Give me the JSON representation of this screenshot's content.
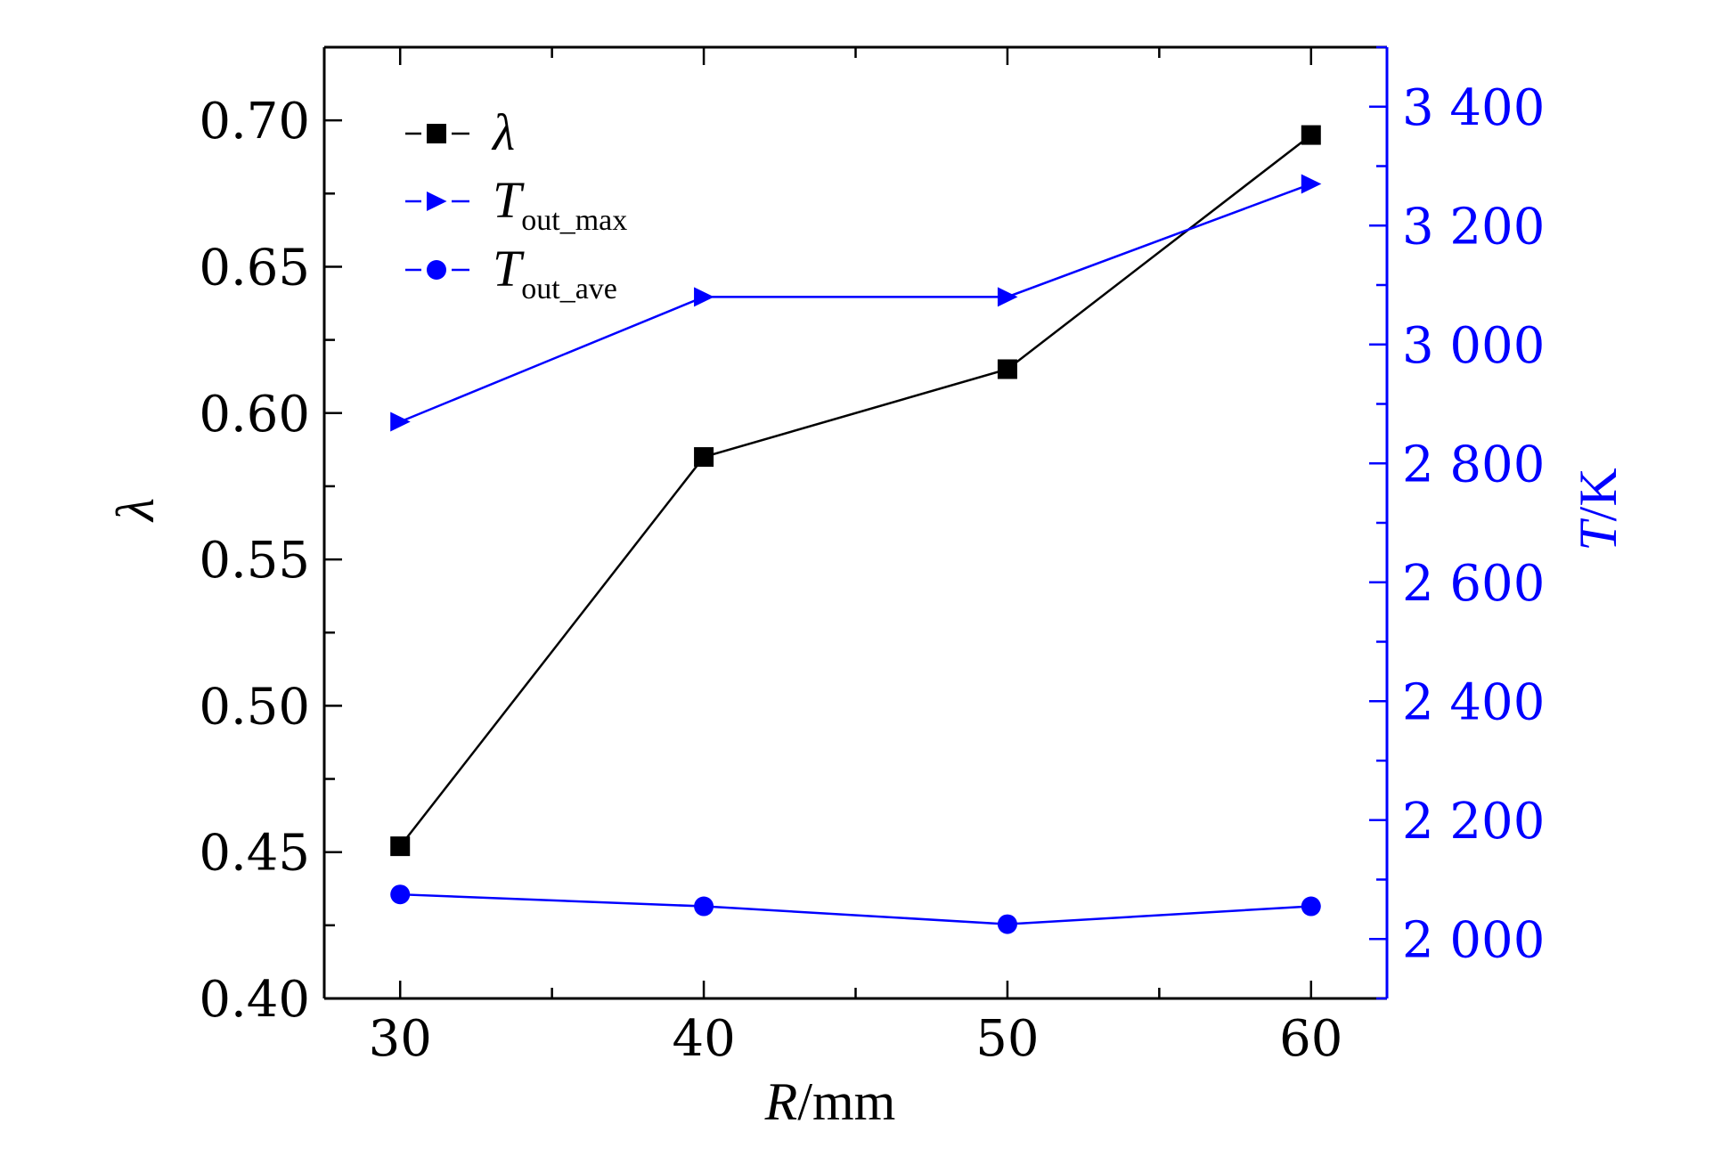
{
  "chart_data": {
    "type": "line",
    "x": [
      30,
      40,
      50,
      60
    ],
    "xlabel": {
      "main": "R",
      "unit": "/mm"
    },
    "xlim": [
      27.5,
      62.5
    ],
    "x_ticks": [
      30,
      40,
      50,
      60
    ],
    "x_tick_labels": [
      "30",
      "40",
      "50",
      "60"
    ],
    "y_left": {
      "label": "λ",
      "lim": [
        0.4,
        0.725
      ],
      "ticks": [
        0.4,
        0.45,
        0.5,
        0.55,
        0.6,
        0.65,
        0.7
      ],
      "tick_labels": [
        "0.40",
        "0.45",
        "0.50",
        "0.55",
        "0.60",
        "0.65",
        "0.70"
      ],
      "color": "#000000"
    },
    "y_right": {
      "label": {
        "main": "T",
        "unit": "/K"
      },
      "lim": [
        1900,
        3500
      ],
      "ticks": [
        2000,
        2200,
        2400,
        2600,
        2800,
        3000,
        3200,
        3400
      ],
      "tick_labels": [
        "2 000",
        "2 200",
        "2 400",
        "2 600",
        "2 800",
        "3 000",
        "3 200",
        "3 400"
      ],
      "color": "#0000ff"
    },
    "series": [
      {
        "name": "λ",
        "axis": "left",
        "marker": "square",
        "color": "#000000",
        "values": [
          0.452,
          0.585,
          0.615,
          0.695
        ]
      },
      {
        "name": "T",
        "name_sub": "out_max",
        "axis": "right",
        "marker": "triangle-right",
        "color": "#0000ff",
        "values": [
          2870,
          3080,
          3080,
          3270
        ]
      },
      {
        "name": "T",
        "name_sub": "out_ave",
        "axis": "right",
        "marker": "circle",
        "color": "#0000ff",
        "values": [
          2075,
          2055,
          2025,
          2055
        ]
      }
    ],
    "legend": "top-left",
    "grid": false
  }
}
